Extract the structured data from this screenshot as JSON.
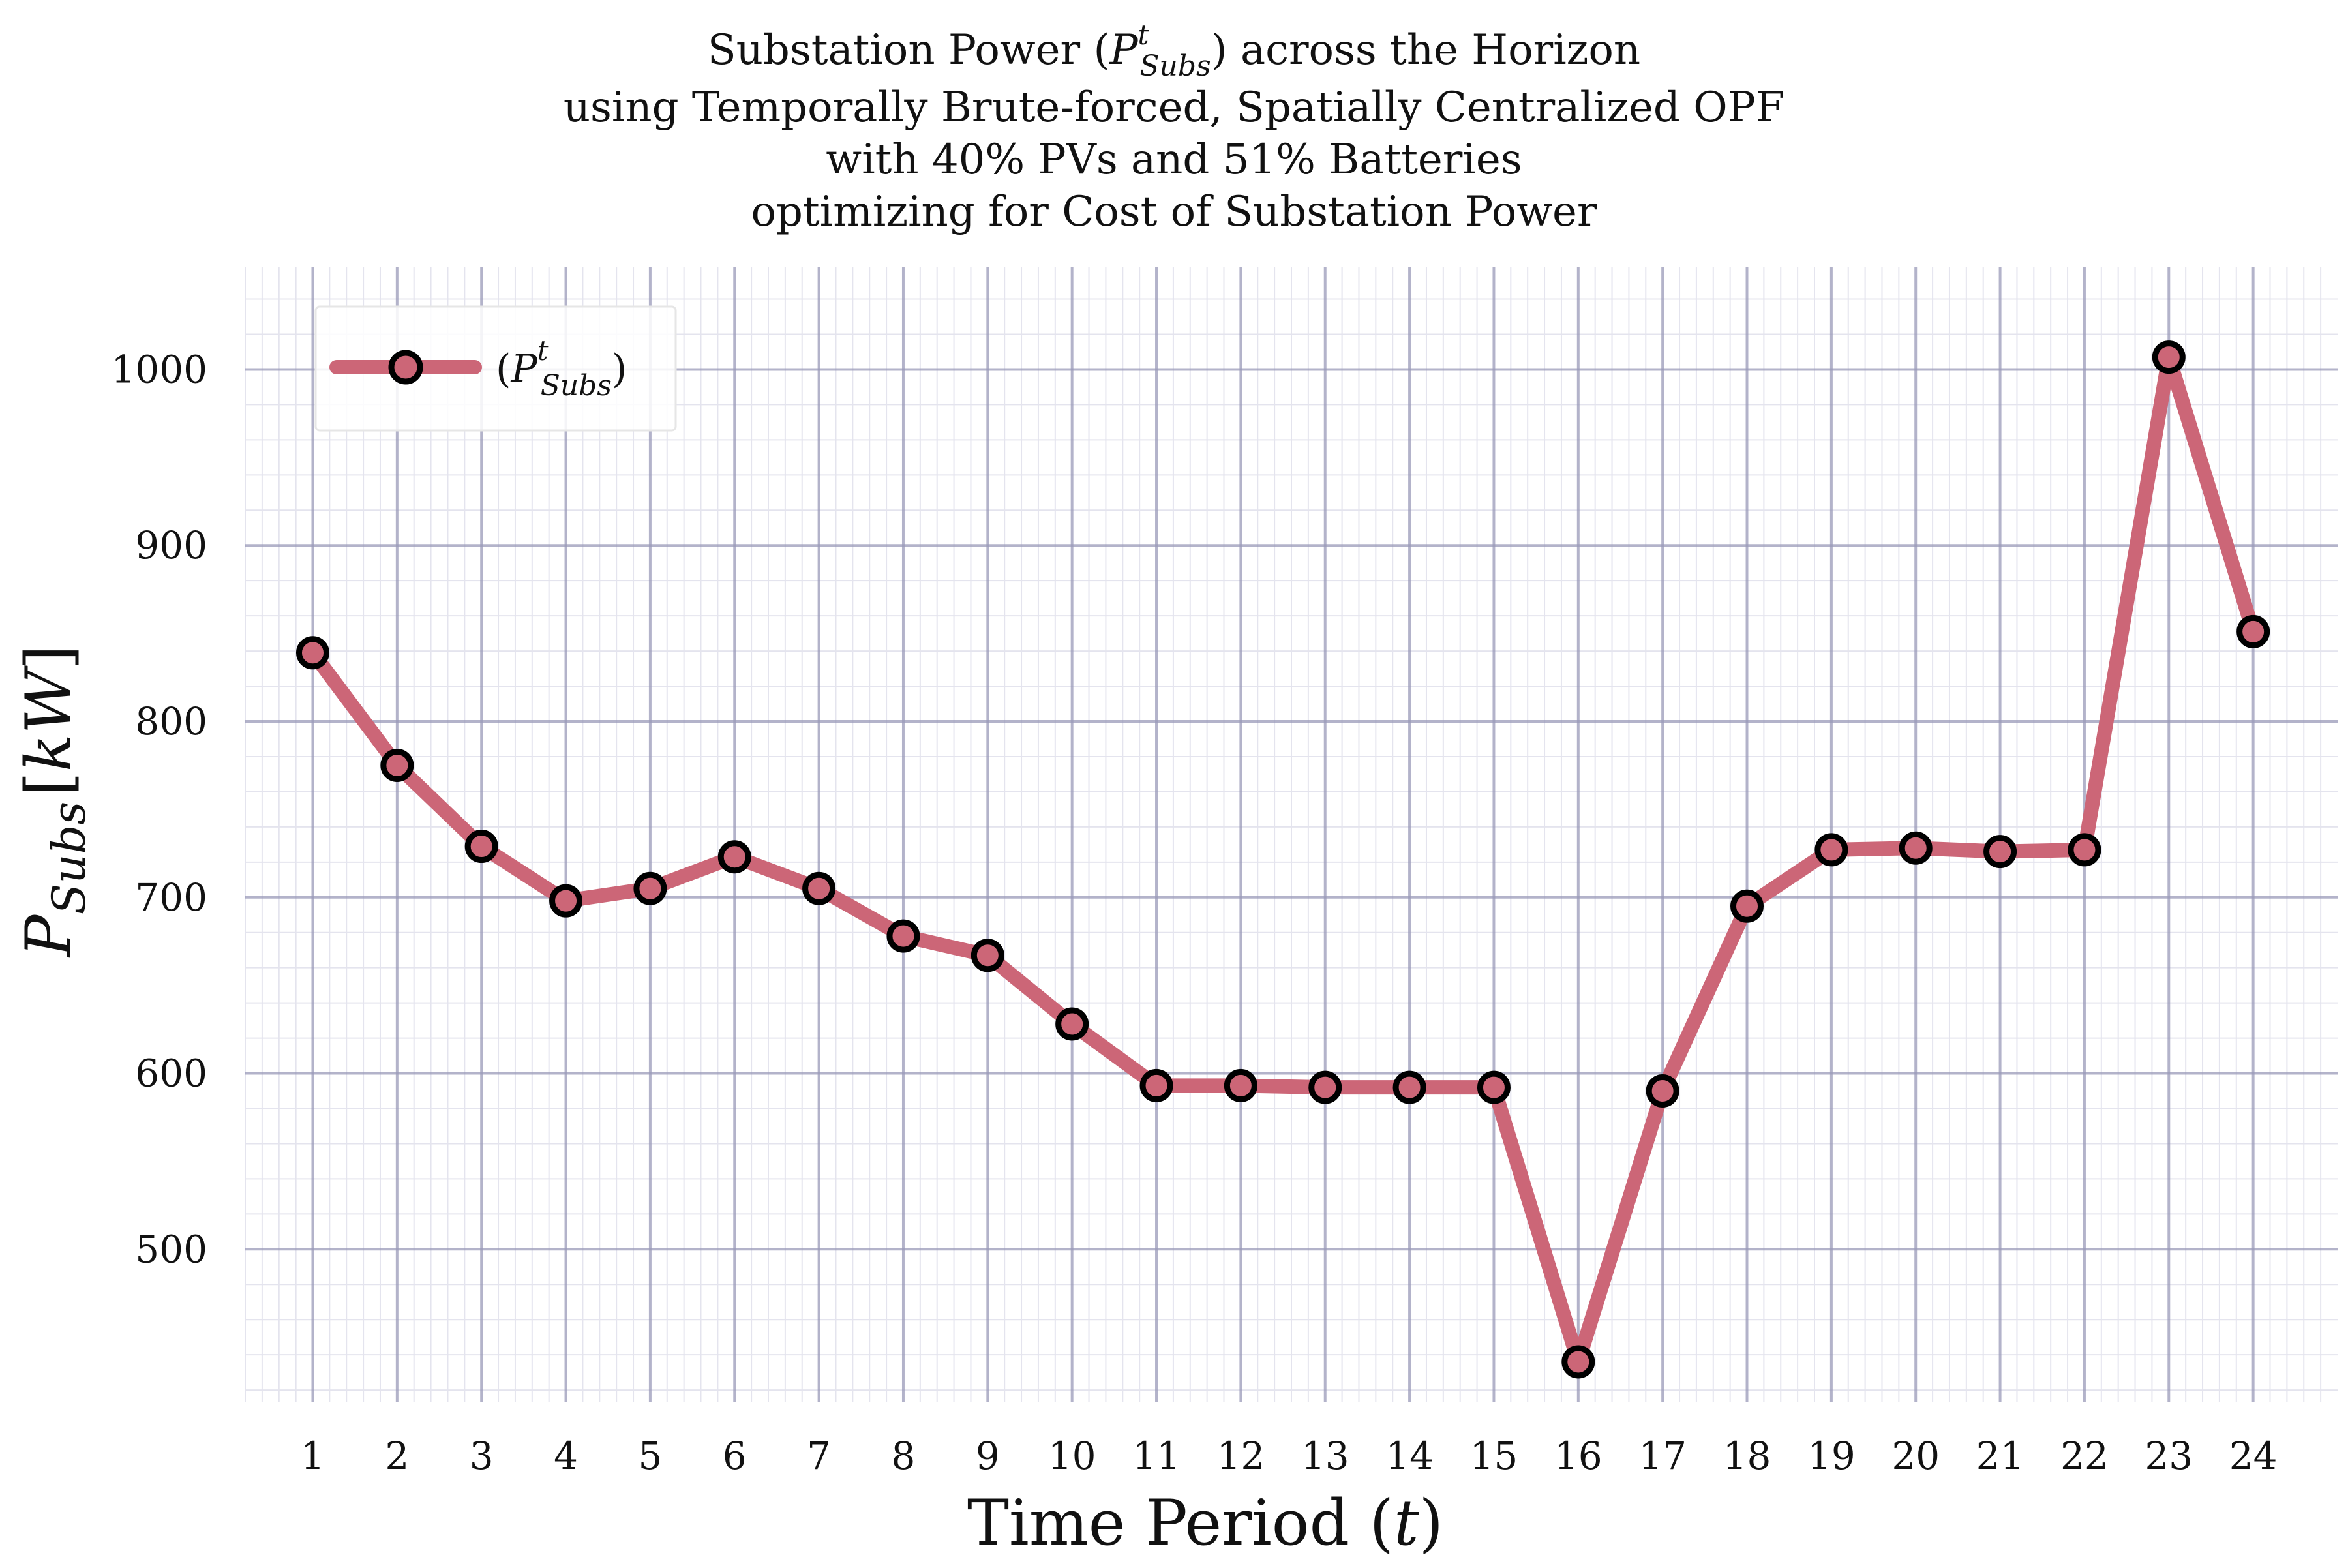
{
  "chart_data": {
    "type": "line",
    "title": [
      "Substation Power (P_Subs^t) across the Horizon",
      "using Temporally Brute-forced, Spatially Centralized OPF",
      "with 40% PVs and 51% Batteries",
      "optimizing for Cost of Substation Power"
    ],
    "title_parts": {
      "line1_prefix": "Substation Power (",
      "line1_symbol": "P",
      "line1_sub": "Subs",
      "line1_sup": "t",
      "line1_suffix": ") across the Horizon",
      "line2": "using Temporally Brute-forced, Spatially Centralized OPF",
      "line3": "with 40% PVs and 51% Batteries",
      "line4": "optimizing for Cost of Substation Power"
    },
    "xlabel": "Time Period (t)",
    "xlabel_parts": {
      "text": "Time Period (",
      "symbol": "t",
      "close": ")"
    },
    "ylabel": "P_Subs [kW]",
    "ylabel_parts": {
      "symbol": "P",
      "sub": "Subs",
      "unit_open": "[",
      "unit": "kW",
      "unit_close": "]"
    },
    "x": [
      1,
      2,
      3,
      4,
      5,
      6,
      7,
      8,
      9,
      10,
      11,
      12,
      13,
      14,
      15,
      16,
      17,
      18,
      19,
      20,
      21,
      22,
      23,
      24
    ],
    "x_tick_labels": [
      "1",
      "2",
      "3",
      "4",
      "5",
      "6",
      "7",
      "8",
      "9",
      "10",
      "11",
      "12",
      "13",
      "14",
      "15",
      "16",
      "17",
      "18",
      "19",
      "20",
      "21",
      "22",
      "23",
      "24"
    ],
    "y_ticks": [
      500,
      600,
      700,
      800,
      900,
      1000
    ],
    "y_tick_labels": [
      "500",
      "600",
      "700",
      "800",
      "900",
      "1000"
    ],
    "xlim": [
      0.2,
      25.0
    ],
    "ylim": [
      413,
      1058
    ],
    "grid": true,
    "legend_position": "top-left",
    "series": [
      {
        "name": "(P_Subs^t)",
        "name_parts": {
          "open": "(",
          "symbol": "P",
          "sub": "Subs",
          "sup": "t",
          "close": ")"
        },
        "color": "#cc6677",
        "marker_edge": "#000000",
        "values": [
          839,
          775,
          729,
          698,
          705,
          723,
          705,
          678,
          667,
          628,
          593,
          593,
          592,
          592,
          592,
          436,
          590,
          695,
          727,
          728,
          726,
          727,
          1007,
          851
        ]
      }
    ]
  },
  "colors": {
    "major_grid": "#9a9ab8",
    "minor_grid": "#e4e4ee",
    "legend_border": "#e6e6e6"
  }
}
